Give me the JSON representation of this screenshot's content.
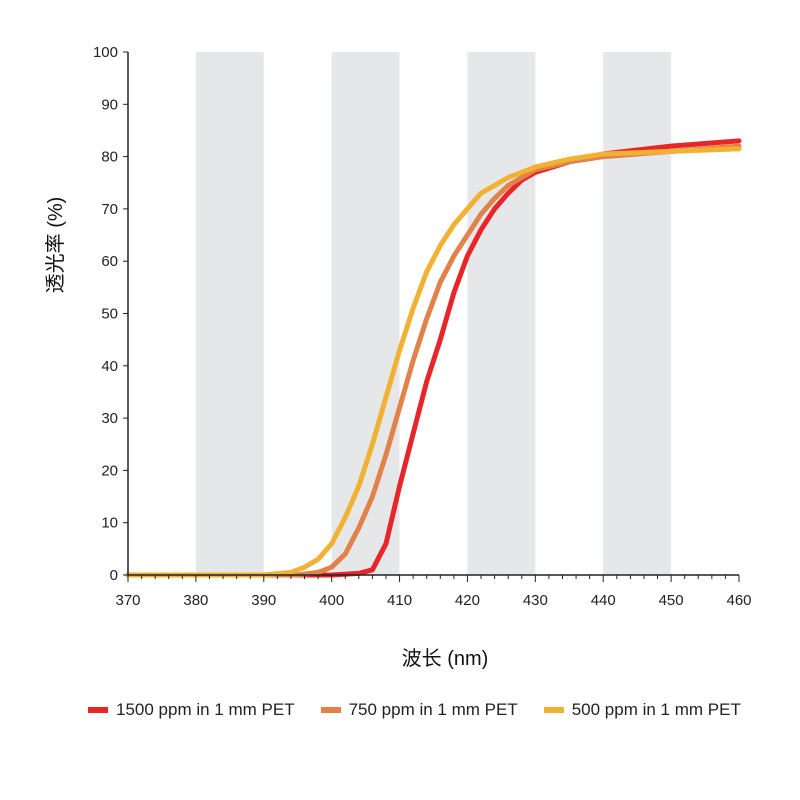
{
  "chart_data": {
    "type": "line",
    "title": "",
    "xlabel": "波长 (nm)",
    "ylabel": "透光率 (%)",
    "xlim": [
      370,
      460
    ],
    "ylim": [
      0,
      100
    ],
    "xticks": [
      370,
      380,
      390,
      400,
      410,
      420,
      430,
      440,
      450,
      460
    ],
    "yticks": [
      0,
      10,
      20,
      30,
      40,
      50,
      60,
      70,
      80,
      90,
      100
    ],
    "shaded_bands": [
      [
        380,
        390
      ],
      [
        400,
        410
      ],
      [
        420,
        430
      ],
      [
        440,
        450
      ]
    ],
    "band_color": "#e6e7e8",
    "legend_position": "bottom",
    "series": [
      {
        "name": "1500 ppm in 1 mm PET",
        "color": "#e8262a",
        "x": [
          370,
          400,
          404,
          406,
          408,
          410,
          412,
          414,
          416,
          418,
          420,
          422,
          424,
          426,
          428,
          430,
          435,
          440,
          450,
          460
        ],
        "y": [
          0,
          0,
          0.3,
          1,
          6,
          17,
          27,
          37,
          45,
          54,
          61,
          66,
          70,
          73,
          75.5,
          77,
          79,
          80.5,
          82,
          83
        ]
      },
      {
        "name": "750 ppm in 1 mm PET",
        "color": "#e0824a",
        "x": [
          370,
          395,
          398,
          400,
          402,
          404,
          406,
          408,
          410,
          412,
          414,
          416,
          418,
          420,
          422,
          424,
          426,
          428,
          430,
          435,
          440,
          450,
          460
        ],
        "y": [
          0,
          0,
          0.5,
          1.5,
          4,
          9,
          15,
          23,
          32,
          41,
          49,
          56,
          61,
          65,
          69,
          72,
          74.5,
          76,
          77.5,
          79,
          80,
          81,
          82
        ]
      },
      {
        "name": "500 ppm in 1 mm PET",
        "color": "#f1b133",
        "x": [
          370,
          390,
          394,
          396,
          398,
          400,
          402,
          404,
          406,
          408,
          410,
          412,
          414,
          416,
          418,
          420,
          422,
          424,
          426,
          428,
          430,
          435,
          440,
          450,
          460
        ],
        "y": [
          0,
          0,
          0.5,
          1.5,
          3,
          6,
          11,
          17,
          25,
          34,
          43,
          51,
          58,
          63,
          67,
          70,
          73,
          74.5,
          76,
          77,
          78,
          79.5,
          80.5,
          81,
          81.5
        ]
      }
    ]
  }
}
